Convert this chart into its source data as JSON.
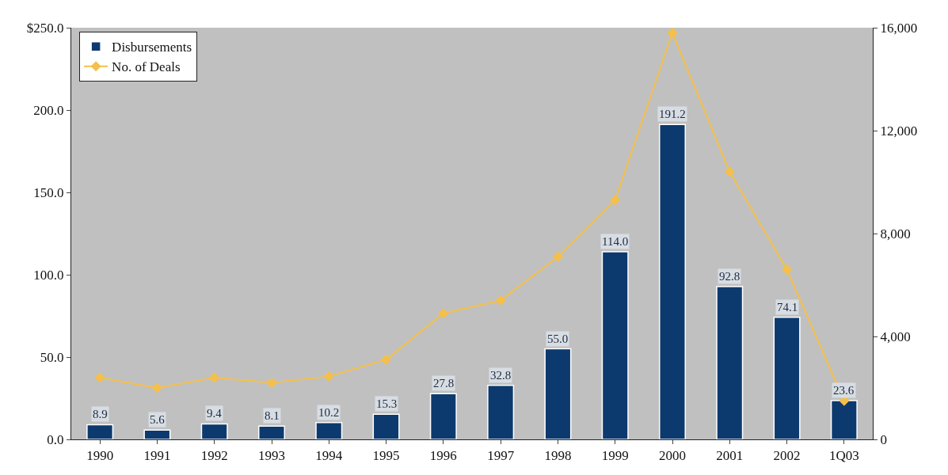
{
  "chart_data": {
    "type": "bar",
    "categories": [
      "1990",
      "1991",
      "1992",
      "1993",
      "1994",
      "1995",
      "1996",
      "1997",
      "1998",
      "1999",
      "2000",
      "2001",
      "2002",
      "1Q03"
    ],
    "series": [
      {
        "name": "Disbursements",
        "color": "#0d3a6e",
        "values": [
          8.9,
          5.6,
          9.4,
          8.1,
          10.2,
          15.3,
          27.8,
          32.8,
          55.0,
          114.0,
          191.2,
          92.8,
          74.1,
          23.6
        ],
        "value_labels": [
          "8.9",
          "5.6",
          "9.4",
          "8.1",
          "10.2",
          "15.3",
          "27.8",
          "32.8",
          "55.0",
          "114.0",
          "191.2",
          "92.8",
          "74.1",
          "23.6"
        ]
      },
      {
        "name": "No. of Deals",
        "type": "line",
        "axis": "y2",
        "color": "#f5c04a",
        "marker": "diamond",
        "values": [
          2400,
          2000,
          2400,
          2200,
          2450,
          3100,
          4900,
          5400,
          7100,
          9300,
          15800,
          10400,
          6600,
          1500
        ]
      }
    ],
    "ylim": [
      0,
      250
    ],
    "yticks": [
      {
        "value": 0,
        "label": "0.0"
      },
      {
        "value": 50,
        "label": "50.0"
      },
      {
        "value": 100,
        "label": "100.0"
      },
      {
        "value": 150,
        "label": "150.0"
      },
      {
        "value": 200,
        "label": "200.0"
      },
      {
        "value": 250,
        "label": "$250.0"
      }
    ],
    "y2lim": [
      0,
      16000
    ],
    "y2ticks": [
      0,
      {
        "value": 4000,
        "label": "4,000"
      },
      {
        "value": 8000,
        "label": "8,000"
      },
      {
        "value": 12000,
        "label": "12,000"
      },
      {
        "value": 16000,
        "label": "16,000"
      }
    ],
    "grid": false,
    "legend": "top left"
  }
}
